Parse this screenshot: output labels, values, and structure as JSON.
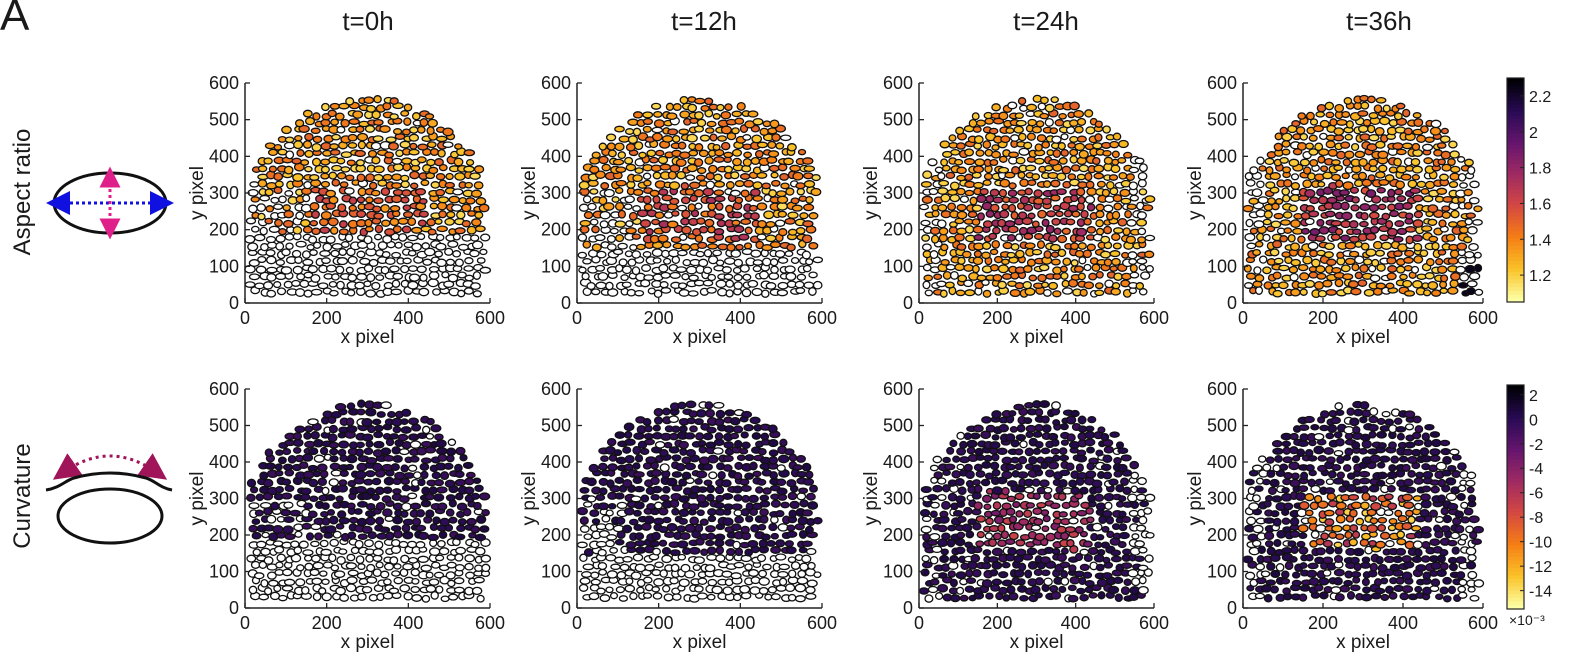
{
  "figure": {
    "panel_letter": "A",
    "time_labels": [
      "t=0h",
      "t=12h",
      "t=24h",
      "t=36h"
    ],
    "row_labels": [
      "Aspect ratio",
      "Curvature"
    ]
  },
  "axes": {
    "xlabel": "x pixel",
    "ylabel": "y pixel",
    "xticks": [
      0,
      200,
      400,
      600
    ],
    "yticks": [
      0,
      100,
      200,
      300,
      400,
      500,
      600
    ],
    "xlim": [
      0,
      600
    ],
    "ylim": [
      0,
      600
    ]
  },
  "colorbars": [
    {
      "name": "aspect-ratio",
      "range": [
        1.05,
        2.3
      ],
      "ticks": [
        "1.2",
        "1.4",
        "1.6",
        "1.8",
        "2",
        "2.2"
      ],
      "tick_values": [
        1.2,
        1.4,
        1.6,
        1.8,
        2.0,
        2.2
      ],
      "exponent_label": ""
    },
    {
      "name": "curvature",
      "range": [
        -15.5,
        2.8
      ],
      "ticks": [
        "2",
        "0",
        "-2",
        "-4",
        "-6",
        "-8",
        "-10",
        "-12",
        "-14"
      ],
      "tick_values": [
        2,
        0,
        -2,
        -4,
        -6,
        -8,
        -10,
        -12,
        -14
      ],
      "exponent_label": "×10⁻³"
    }
  ],
  "colors": {
    "colormap": "inferno",
    "unfilled_cell": "#ffffff",
    "cell_edge": "#111111",
    "aspect_arrow_long": "#1010e0",
    "aspect_arrow_short": "#e0208a",
    "curvature_arrow": "#a0145a"
  },
  "chart_data": [
    {
      "type": "scatter",
      "row": "Aspect ratio",
      "time": "t=0h",
      "xlim": [
        0,
        600
      ],
      "ylim": [
        0,
        600
      ],
      "grid": false,
      "colorbar": "aspect-ratio",
      "cell_count_estimate": 420,
      "value_range": [
        1.1,
        1.7
      ]
    },
    {
      "type": "scatter",
      "row": "Aspect ratio",
      "time": "t=12h",
      "xlim": [
        0,
        600
      ],
      "ylim": [
        0,
        600
      ],
      "grid": false,
      "colorbar": "aspect-ratio",
      "cell_count_estimate": 400,
      "value_range": [
        1.1,
        1.8
      ]
    },
    {
      "type": "scatter",
      "row": "Aspect ratio",
      "time": "t=24h",
      "xlim": [
        0,
        600
      ],
      "ylim": [
        0,
        600
      ],
      "grid": false,
      "colorbar": "aspect-ratio",
      "cell_count_estimate": 420,
      "value_range": [
        1.1,
        1.9
      ]
    },
    {
      "type": "scatter",
      "row": "Aspect ratio",
      "time": "t=36h",
      "xlim": [
        0,
        600
      ],
      "ylim": [
        0,
        600
      ],
      "grid": false,
      "colorbar": "aspect-ratio",
      "cell_count_estimate": 380,
      "value_range": [
        1.1,
        2.3
      ]
    },
    {
      "type": "scatter",
      "row": "Curvature",
      "time": "t=0h",
      "xlim": [
        0,
        600
      ],
      "ylim": [
        0,
        600
      ],
      "grid": false,
      "colorbar": "curvature",
      "cell_count_estimate": 420,
      "value_range": [
        -2,
        1
      ]
    },
    {
      "type": "scatter",
      "row": "Curvature",
      "time": "t=12h",
      "xlim": [
        0,
        600
      ],
      "ylim": [
        0,
        600
      ],
      "grid": false,
      "colorbar": "curvature",
      "cell_count_estimate": 400,
      "value_range": [
        -3,
        2
      ]
    },
    {
      "type": "scatter",
      "row": "Curvature",
      "time": "t=24h",
      "xlim": [
        0,
        600
      ],
      "ylim": [
        0,
        600
      ],
      "grid": false,
      "colorbar": "curvature",
      "cell_count_estimate": 420,
      "value_range": [
        -9,
        2
      ]
    },
    {
      "type": "scatter",
      "row": "Curvature",
      "time": "t=36h",
      "xlim": [
        0,
        600
      ],
      "ylim": [
        0,
        600
      ],
      "grid": false,
      "colorbar": "curvature",
      "cell_count_estimate": 380,
      "value_range": [
        -15,
        2
      ]
    }
  ]
}
